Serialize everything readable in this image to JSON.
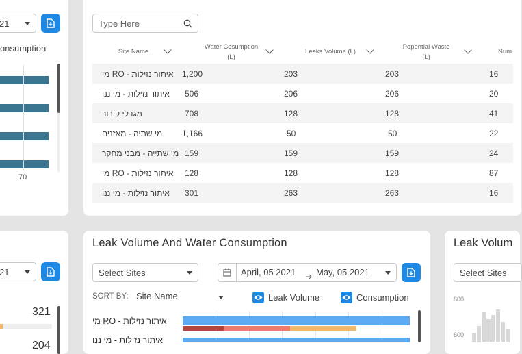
{
  "left_card": {
    "dropdown_value": "21",
    "heading": "onsumption",
    "axis_tick": "70"
  },
  "table_card": {
    "search": {
      "placeholder": "Type Here"
    },
    "columns": [
      {
        "label": "Site Name"
      },
      {
        "label": "Water Cosumption (L)"
      },
      {
        "label": "Leaks Volume (L)"
      },
      {
        "label": "Popential Waste (L)"
      },
      {
        "label": "Num"
      }
    ],
    "rows": [
      {
        "site": "איתור נזילות - RO מי",
        "water": "1,200",
        "leaks": "203",
        "waste": "203",
        "num": "16"
      },
      {
        "site": "איתור נזילות - מי ננו",
        "water": "506",
        "leaks": "206",
        "waste": "206",
        "num": "20"
      },
      {
        "site": "מגדלי קירור",
        "water": "708",
        "leaks": "128",
        "waste": "128",
        "num": "41"
      },
      {
        "site": "מי שתיה - מאזנים",
        "water": "1,166",
        "leaks": "50",
        "waste": "50",
        "num": "22"
      },
      {
        "site": "מי שתייה - מבני מחקר",
        "water": "159",
        "leaks": "159",
        "waste": "159",
        "num": "24"
      },
      {
        "site": "איתור נזילות - RO מי",
        "water": "128",
        "leaks": "128",
        "waste": "128",
        "num": "87"
      },
      {
        "site": "איתור נזילות - מי ננו",
        "water": "301",
        "leaks": "263",
        "waste": "263",
        "num": "16"
      }
    ]
  },
  "bottom_left_card": {
    "dropdown_value": "21",
    "value_top": "321",
    "value_partial": "204"
  },
  "leak_card": {
    "title": "Leak Volume And Water Consumption",
    "select_sites": "Select Sites",
    "date_from": "April, 05 2021",
    "date_to": "May, 05 2021",
    "sort_by_label": "SORT BY:",
    "sort_by_value": "Site Name",
    "legend": {
      "leak_volume": "Leak Volume",
      "consumption": "Consumption"
    },
    "chart_rows": [
      {
        "site": "איתור נזילות - RO מי"
      },
      {
        "site": "איתור נזילות - מי ננו"
      }
    ]
  },
  "right_card": {
    "title": "Leak Volum",
    "select_sites": "Select Sites",
    "y_ticks": [
      "800",
      "600"
    ]
  },
  "colors": {
    "accent": "#1e88e5",
    "bar_blue": "#5baaf2",
    "bar_teal": "#3b7590",
    "bar_dark_red": "#b5463e",
    "bar_salmon": "#ef7b6e",
    "bar_orange": "#f2b86a"
  }
}
